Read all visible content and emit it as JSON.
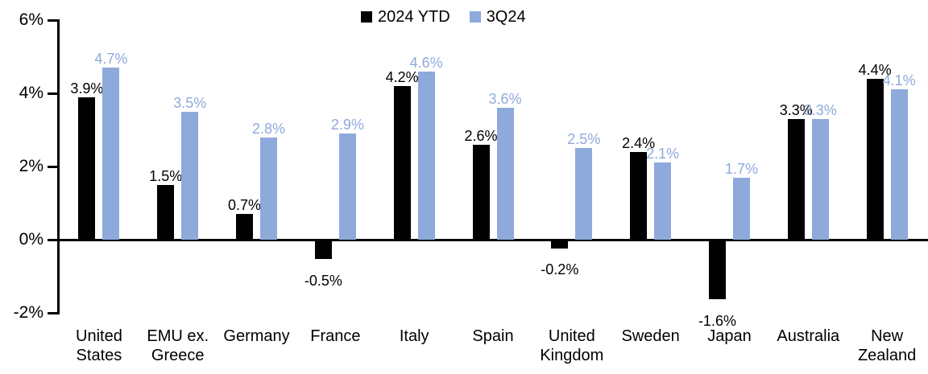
{
  "chart_data": {
    "type": "bar",
    "categories": [
      "United States",
      "EMU ex. Greece",
      "Germany",
      "France",
      "Italy",
      "Spain",
      "United Kingdom",
      "Sweden",
      "Japan",
      "Australia",
      "New Zealand"
    ],
    "series": [
      {
        "name": "2024 YTD",
        "color": "#000000",
        "values": [
          3.9,
          1.5,
          0.7,
          -0.5,
          4.2,
          2.6,
          -0.2,
          2.4,
          -1.6,
          3.3,
          4.4
        ]
      },
      {
        "name": "3Q24",
        "color": "#8EAADB",
        "values": [
          4.7,
          3.5,
          2.8,
          2.9,
          4.6,
          3.6,
          2.5,
          2.1,
          1.7,
          3.3,
          4.1
        ]
      }
    ],
    "value_suffix": "%",
    "title": "",
    "xlabel": "",
    "ylabel": "",
    "ylim": [
      -2,
      6
    ],
    "yticks": [
      6,
      4,
      2,
      0,
      -2
    ],
    "ytick_labels": [
      "6%",
      "4%",
      "2%",
      "0%",
      "-2%"
    ],
    "grid": false,
    "legend_position": "top-center",
    "background_color": "#ffffff"
  }
}
